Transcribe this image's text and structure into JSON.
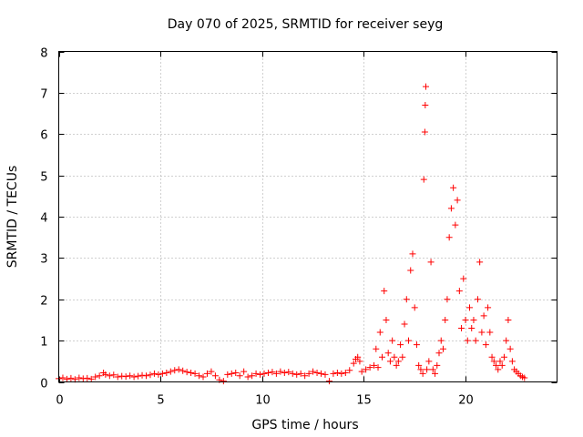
{
  "chart_data": {
    "type": "scatter",
    "title": "Day 070 of 2025, SRMTID for receiver seyg",
    "xlabel": "GPS time / hours",
    "ylabel": "SRMTID / TECUs",
    "xlim": [
      0,
      24.5
    ],
    "ylim": [
      0,
      8
    ],
    "xticks": [
      0,
      5,
      10,
      15,
      20
    ],
    "yticks": [
      0,
      1,
      2,
      3,
      4,
      5,
      6,
      7,
      8
    ],
    "xtick_labels": [
      "0",
      "5",
      "10",
      "15",
      "20"
    ],
    "ytick_labels": [
      "0",
      "1",
      "2",
      "3",
      "4",
      "5",
      "6",
      "7",
      "8"
    ],
    "grid": true,
    "marker": "+",
    "series": [
      {
        "name": "SRMTID",
        "color": "#ff0000",
        "points": [
          [
            0.0,
            0.08
          ],
          [
            0.2,
            0.1
          ],
          [
            0.4,
            0.07
          ],
          [
            0.6,
            0.09
          ],
          [
            0.8,
            0.06
          ],
          [
            1.0,
            0.1
          ],
          [
            1.2,
            0.08
          ],
          [
            1.4,
            0.09
          ],
          [
            1.6,
            0.07
          ],
          [
            1.8,
            0.12
          ],
          [
            2.0,
            0.15
          ],
          [
            2.2,
            0.22
          ],
          [
            2.3,
            0.18
          ],
          [
            2.5,
            0.15
          ],
          [
            2.7,
            0.17
          ],
          [
            2.9,
            0.12
          ],
          [
            3.1,
            0.14
          ],
          [
            3.3,
            0.13
          ],
          [
            3.5,
            0.15
          ],
          [
            3.7,
            0.12
          ],
          [
            3.9,
            0.14
          ],
          [
            4.1,
            0.16
          ],
          [
            4.3,
            0.15
          ],
          [
            4.5,
            0.17
          ],
          [
            4.7,
            0.2
          ],
          [
            4.9,
            0.18
          ],
          [
            5.1,
            0.2
          ],
          [
            5.3,
            0.22
          ],
          [
            5.5,
            0.25
          ],
          [
            5.7,
            0.28
          ],
          [
            5.9,
            0.3
          ],
          [
            6.1,
            0.27
          ],
          [
            6.3,
            0.24
          ],
          [
            6.5,
            0.22
          ],
          [
            6.7,
            0.2
          ],
          [
            6.9,
            0.15
          ],
          [
            7.1,
            0.12
          ],
          [
            7.3,
            0.2
          ],
          [
            7.5,
            0.25
          ],
          [
            7.7,
            0.15
          ],
          [
            7.9,
            0.05
          ],
          [
            8.1,
            0.02
          ],
          [
            8.3,
            0.18
          ],
          [
            8.5,
            0.2
          ],
          [
            8.7,
            0.22
          ],
          [
            8.9,
            0.15
          ],
          [
            9.1,
            0.25
          ],
          [
            9.3,
            0.12
          ],
          [
            9.5,
            0.15
          ],
          [
            9.7,
            0.2
          ],
          [
            9.9,
            0.18
          ],
          [
            10.1,
            0.2
          ],
          [
            10.3,
            0.22
          ],
          [
            10.5,
            0.24
          ],
          [
            10.7,
            0.2
          ],
          [
            10.9,
            0.25
          ],
          [
            11.1,
            0.22
          ],
          [
            11.3,
            0.24
          ],
          [
            11.5,
            0.2
          ],
          [
            11.7,
            0.18
          ],
          [
            11.9,
            0.2
          ],
          [
            12.1,
            0.15
          ],
          [
            12.3,
            0.2
          ],
          [
            12.5,
            0.25
          ],
          [
            12.7,
            0.22
          ],
          [
            12.9,
            0.2
          ],
          [
            13.1,
            0.18
          ],
          [
            13.3,
            0.02
          ],
          [
            13.5,
            0.2
          ],
          [
            13.7,
            0.22
          ],
          [
            13.9,
            0.2
          ],
          [
            14.1,
            0.22
          ],
          [
            14.3,
            0.28
          ],
          [
            14.5,
            0.45
          ],
          [
            14.6,
            0.55
          ],
          [
            14.7,
            0.6
          ],
          [
            14.8,
            0.5
          ],
          [
            14.9,
            0.25
          ],
          [
            15.1,
            0.3
          ],
          [
            15.3,
            0.35
          ],
          [
            15.5,
            0.4
          ],
          [
            15.6,
            0.8
          ],
          [
            15.7,
            0.35
          ],
          [
            15.8,
            1.2
          ],
          [
            15.9,
            0.6
          ],
          [
            16.0,
            2.2
          ],
          [
            16.1,
            1.5
          ],
          [
            16.2,
            0.7
          ],
          [
            16.3,
            0.5
          ],
          [
            16.4,
            1.0
          ],
          [
            16.5,
            0.6
          ],
          [
            16.6,
            0.4
          ],
          [
            16.7,
            0.5
          ],
          [
            16.8,
            0.9
          ],
          [
            16.9,
            0.6
          ],
          [
            17.0,
            1.4
          ],
          [
            17.1,
            2.0
          ],
          [
            17.2,
            1.0
          ],
          [
            17.3,
            2.7
          ],
          [
            17.4,
            3.1
          ],
          [
            17.5,
            1.8
          ],
          [
            17.6,
            0.9
          ],
          [
            17.7,
            0.4
          ],
          [
            17.8,
            0.3
          ],
          [
            17.9,
            0.2
          ],
          [
            17.95,
            4.9
          ],
          [
            18.0,
            6.05
          ],
          [
            18.02,
            6.7
          ],
          [
            18.05,
            7.15
          ],
          [
            18.1,
            0.3
          ],
          [
            18.2,
            0.5
          ],
          [
            18.3,
            2.9
          ],
          [
            18.4,
            0.3
          ],
          [
            18.5,
            0.2
          ],
          [
            18.6,
            0.4
          ],
          [
            18.7,
            0.7
          ],
          [
            18.8,
            1.0
          ],
          [
            18.9,
            0.8
          ],
          [
            19.0,
            1.5
          ],
          [
            19.1,
            2.0
          ],
          [
            19.2,
            3.5
          ],
          [
            19.3,
            4.2
          ],
          [
            19.4,
            4.7
          ],
          [
            19.5,
            3.8
          ],
          [
            19.6,
            4.4
          ],
          [
            19.7,
            2.2
          ],
          [
            19.8,
            1.3
          ],
          [
            19.9,
            2.5
          ],
          [
            20.0,
            1.5
          ],
          [
            20.1,
            1.0
          ],
          [
            20.2,
            1.8
          ],
          [
            20.3,
            1.3
          ],
          [
            20.4,
            1.5
          ],
          [
            20.5,
            1.0
          ],
          [
            20.6,
            2.0
          ],
          [
            20.7,
            2.9
          ],
          [
            20.8,
            1.2
          ],
          [
            20.9,
            1.6
          ],
          [
            21.0,
            0.9
          ],
          [
            21.1,
            1.8
          ],
          [
            21.2,
            1.2
          ],
          [
            21.3,
            0.6
          ],
          [
            21.4,
            0.5
          ],
          [
            21.5,
            0.4
          ],
          [
            21.6,
            0.3
          ],
          [
            21.7,
            0.5
          ],
          [
            21.8,
            0.4
          ],
          [
            21.9,
            0.6
          ],
          [
            22.0,
            1.0
          ],
          [
            22.1,
            1.5
          ],
          [
            22.2,
            0.8
          ],
          [
            22.3,
            0.5
          ],
          [
            22.4,
            0.3
          ],
          [
            22.5,
            0.25
          ],
          [
            22.6,
            0.2
          ],
          [
            22.7,
            0.15
          ],
          [
            22.8,
            0.12
          ],
          [
            22.9,
            0.1
          ]
        ]
      }
    ]
  }
}
